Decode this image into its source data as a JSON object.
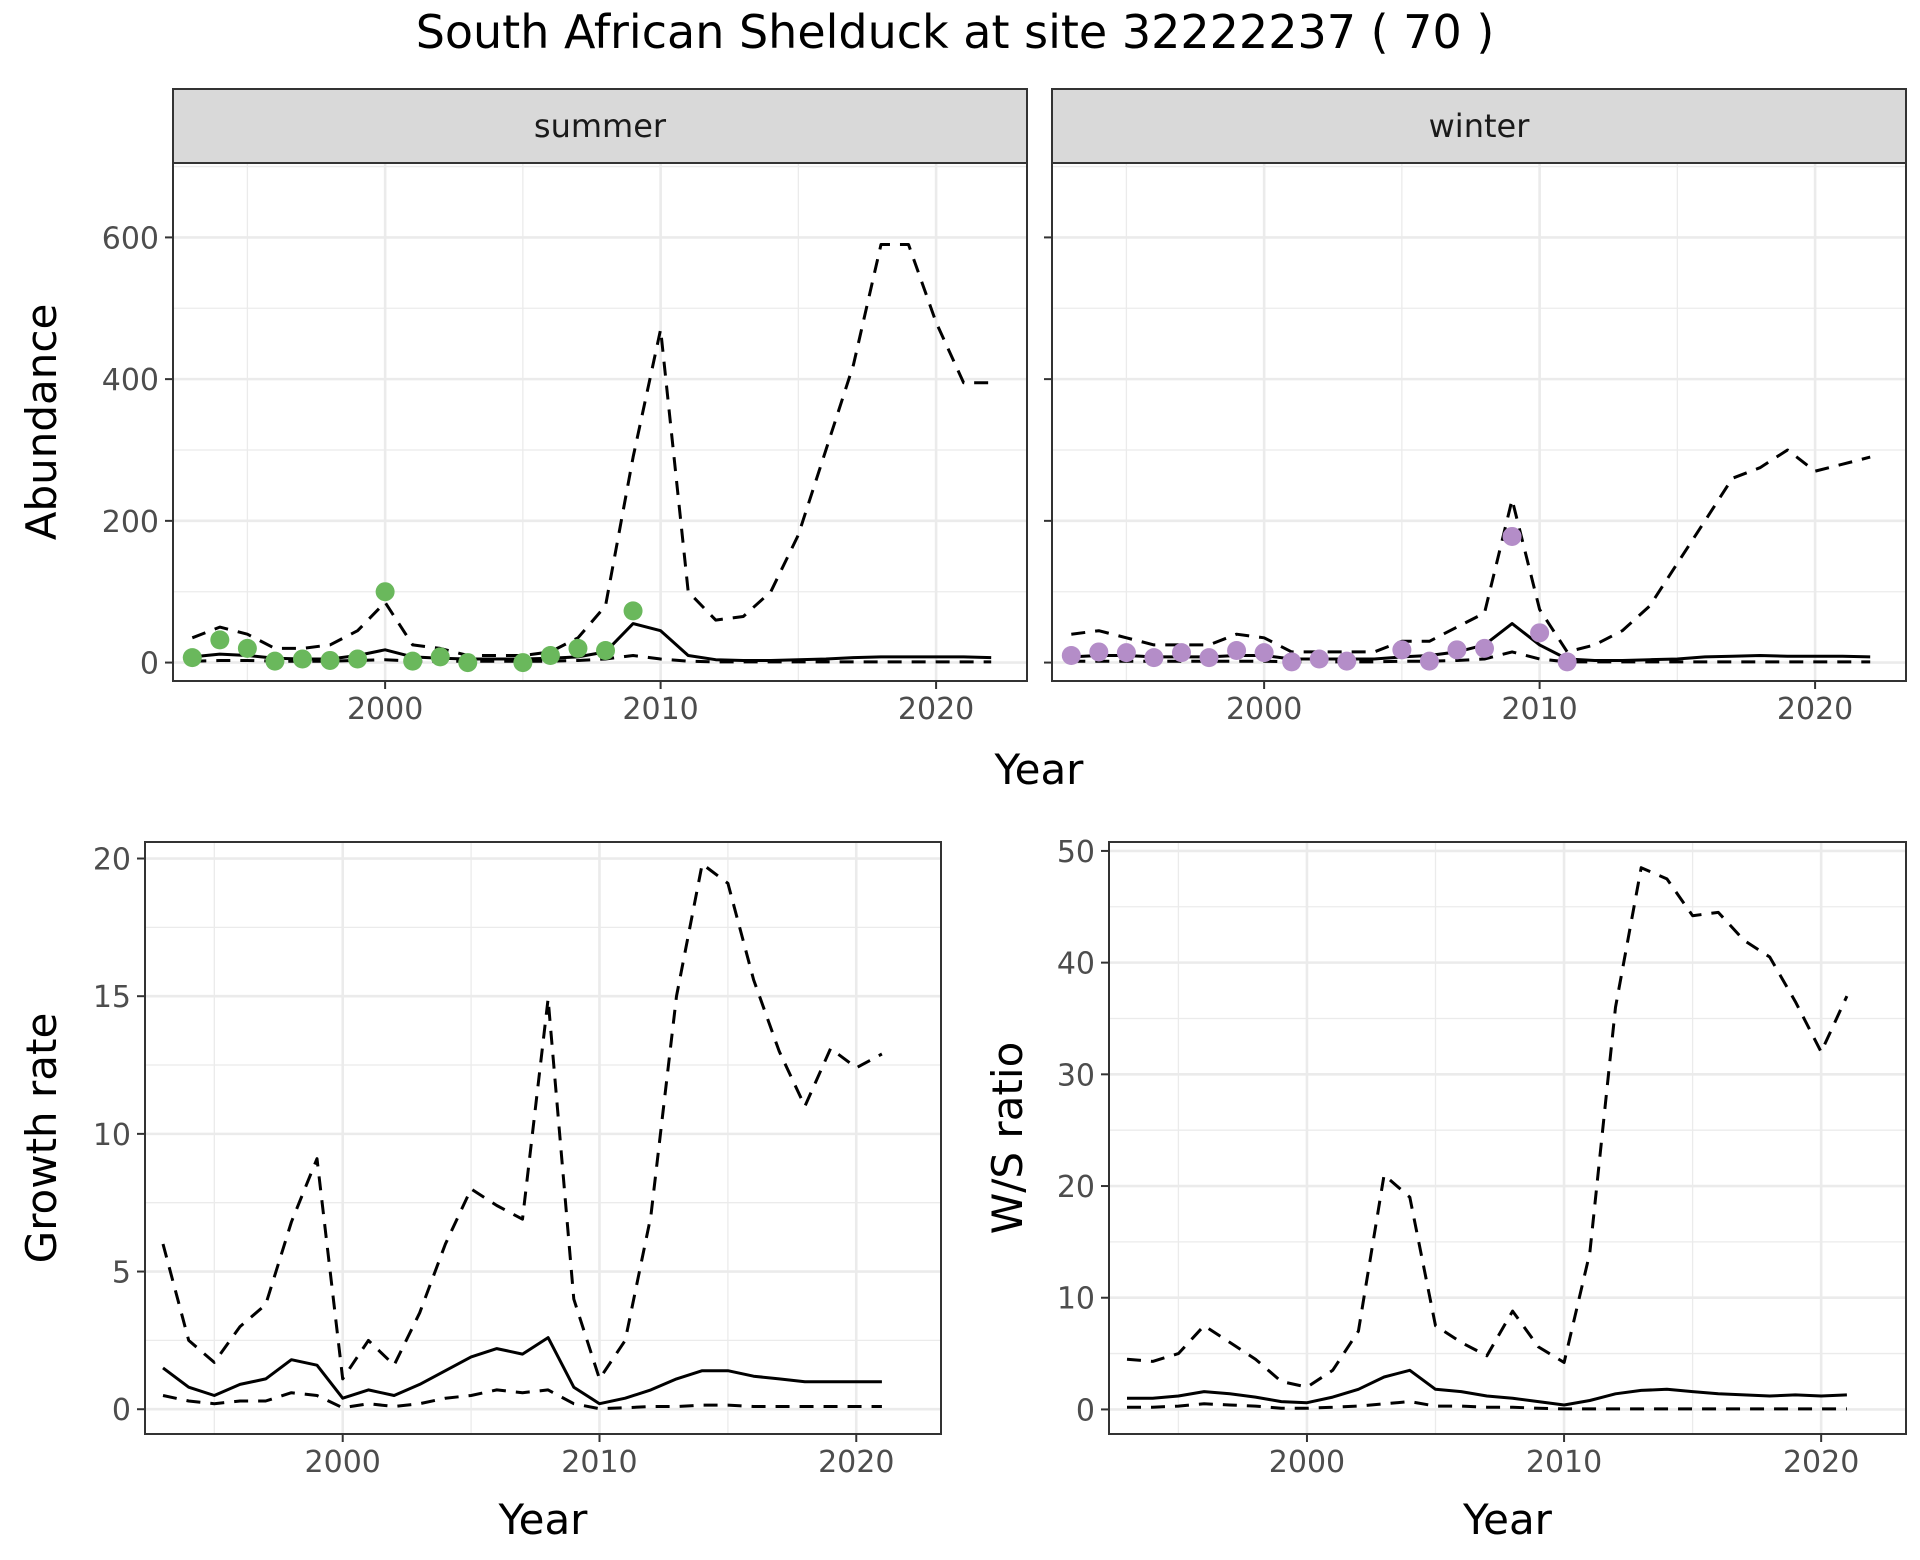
{
  "figure": {
    "title": "South African Shelduck at site 32222237 ( 70 )"
  },
  "colors": {
    "summer_points": "#6ab85c",
    "winter_points": "#b48dc8",
    "lines": "#000000",
    "strip_bg": "#d9d9d9",
    "strip_border": "#333333",
    "grid": "#ebebeb"
  },
  "chart_data": [
    {
      "id": "abundance",
      "type": "line",
      "title": "South African Shelduck at site 32222237 ( 70 )",
      "xlabel": "Year",
      "ylabel": "Abundance",
      "xlim": [
        1992.3,
        2023.3
      ],
      "ylim": [
        -26,
        705
      ],
      "xticks": [
        2000,
        2010,
        2020
      ],
      "xtick_labels": [
        "2000",
        "2010",
        "2020"
      ],
      "yticks": [
        0,
        200,
        400,
        600
      ],
      "ytick_labels": [
        "0",
        "200",
        "400",
        "600"
      ],
      "grid": true,
      "legend": "none",
      "panels": [
        {
          "strip": "summer",
          "point_color": "#6ab85c",
          "series": [
            {
              "style": "solid",
              "x": [
                1993,
                1994,
                1995,
                1996,
                1997,
                1998,
                1999,
                2000,
                2001,
                2002,
                2003,
                2004,
                2005,
                2006,
                2007,
                2008,
                2009,
                2010,
                2011,
                2012,
                2013,
                2014,
                2015,
                2016,
                2017,
                2018,
                2019,
                2020,
                2021,
                2022
              ],
              "values": [
                8,
                12,
                10,
                6,
                5,
                5,
                10,
                18,
                8,
                6,
                5,
                5,
                5,
                6,
                8,
                15,
                55,
                45,
                10,
                4,
                3,
                3,
                4,
                5,
                7,
                8,
                8,
                8,
                8,
                7
              ]
            },
            {
              "style": "dashed",
              "x": [
                1993,
                1994,
                1995,
                1996,
                1997,
                1998,
                1999,
                2000,
                2001,
                2002,
                2003,
                2004,
                2005,
                2006,
                2007,
                2008,
                2009,
                2010,
                2011,
                2012,
                2013,
                2014,
                2015,
                2016,
                2017,
                2018,
                2019,
                2020,
                2021,
                2022
              ],
              "values": [
                35,
                50,
                40,
                20,
                20,
                25,
                45,
                85,
                25,
                20,
                10,
                10,
                10,
                15,
                35,
                80,
                290,
                470,
                100,
                60,
                65,
                100,
                180,
                300,
                420,
                590,
                590,
                480,
                395,
                395
              ]
            },
            {
              "style": "dashed",
              "x": [
                1993,
                1994,
                1995,
                1996,
                1997,
                1998,
                1999,
                2000,
                2001,
                2002,
                2003,
                2004,
                2005,
                2006,
                2007,
                2008,
                2009,
                2010,
                2011,
                2012,
                2013,
                2014,
                2015,
                2016,
                2017,
                2018,
                2019,
                2020,
                2021,
                2022
              ],
              "values": [
                2,
                3,
                3,
                2,
                2,
                2,
                3,
                4,
                2,
                2,
                2,
                2,
                2,
                2,
                3,
                5,
                10,
                5,
                2,
                1,
                1,
                1,
                1,
                1,
                1,
                1,
                1,
                1,
                1,
                1
              ]
            },
            {
              "style": "points",
              "x": [
                1993,
                1994,
                1995,
                1996,
                1997,
                1998,
                1999,
                2000,
                2001,
                2002,
                2003,
                2005,
                2006,
                2007,
                2008,
                2009
              ],
              "values": [
                7,
                32,
                20,
                2,
                5,
                3,
                5,
                100,
                2,
                8,
                0,
                0,
                10,
                20,
                17,
                73
              ]
            }
          ]
        },
        {
          "strip": "winter",
          "point_color": "#b48dc8",
          "series": [
            {
              "style": "solid",
              "x": [
                1993,
                1994,
                1995,
                1996,
                1997,
                1998,
                1999,
                2000,
                2001,
                2002,
                2003,
                2004,
                2005,
                2006,
                2007,
                2008,
                2009,
                2010,
                2011,
                2012,
                2013,
                2014,
                2015,
                2016,
                2017,
                2018,
                2019,
                2020,
                2021,
                2022
              ],
              "values": [
                8,
                10,
                10,
                8,
                8,
                8,
                10,
                10,
                5,
                5,
                5,
                5,
                8,
                10,
                15,
                25,
                55,
                25,
                5,
                3,
                3,
                4,
                5,
                8,
                9,
                10,
                9,
                9,
                9,
                8
              ]
            },
            {
              "style": "dashed",
              "x": [
                1993,
                1994,
                1995,
                1996,
                1997,
                1998,
                1999,
                2000,
                2001,
                2002,
                2003,
                2004,
                2005,
                2006,
                2007,
                2008,
                2009,
                2010,
                2011,
                2012,
                2013,
                2014,
                2015,
                2016,
                2017,
                2018,
                2019,
                2020,
                2021,
                2022
              ],
              "values": [
                40,
                45,
                35,
                25,
                25,
                25,
                40,
                35,
                15,
                15,
                15,
                15,
                30,
                30,
                50,
                70,
                230,
                75,
                15,
                25,
                45,
                80,
                140,
                200,
                260,
                275,
                300,
                270,
                280,
                290
              ]
            },
            {
              "style": "dashed",
              "x": [
                1993,
                1994,
                1995,
                1996,
                1997,
                1998,
                1999,
                2000,
                2001,
                2002,
                2003,
                2004,
                2005,
                2006,
                2007,
                2008,
                2009,
                2010,
                2011,
                2012,
                2013,
                2014,
                2015,
                2016,
                2017,
                2018,
                2019,
                2020,
                2021,
                2022
              ],
              "values": [
                2,
                2,
                2,
                2,
                2,
                2,
                2,
                2,
                1,
                1,
                1,
                1,
                2,
                2,
                3,
                5,
                15,
                5,
                1,
                1,
                1,
                1,
                1,
                1,
                1,
                1,
                1,
                1,
                1,
                1
              ]
            },
            {
              "style": "points",
              "x": [
                1993,
                1994,
                1995,
                1996,
                1997,
                1998,
                1999,
                2000,
                2001,
                2002,
                2003,
                2005,
                2006,
                2007,
                2008,
                2009,
                2010,
                2011
              ],
              "values": [
                10,
                15,
                14,
                7,
                14,
                7,
                17,
                14,
                1,
                5,
                2,
                18,
                2,
                18,
                20,
                178,
                42,
                1
              ]
            }
          ]
        }
      ]
    },
    {
      "id": "growth",
      "type": "line",
      "xlabel": "Year",
      "ylabel": "Growth rate",
      "xlim": [
        1992.3,
        2023.3
      ],
      "ylim": [
        -0.9,
        20.6
      ],
      "xticks": [
        2000,
        2010,
        2020
      ],
      "xtick_labels": [
        "2000",
        "2010",
        "2020"
      ],
      "yticks": [
        0,
        5,
        10,
        15,
        20
      ],
      "ytick_labels": [
        "0",
        "5",
        "10",
        "15",
        "20"
      ],
      "grid": true,
      "legend": "none",
      "series": [
        {
          "style": "solid",
          "x": [
            1993,
            1994,
            1995,
            1996,
            1997,
            1998,
            1999,
            2000,
            2001,
            2002,
            2003,
            2004,
            2005,
            2006,
            2007,
            2008,
            2009,
            2010,
            2011,
            2012,
            2013,
            2014,
            2015,
            2016,
            2017,
            2018,
            2019,
            2020,
            2021
          ],
          "values": [
            1.5,
            0.8,
            0.5,
            0.9,
            1.1,
            1.8,
            1.6,
            0.4,
            0.7,
            0.5,
            0.9,
            1.4,
            1.9,
            2.2,
            2.0,
            2.6,
            0.8,
            0.2,
            0.4,
            0.7,
            1.1,
            1.4,
            1.4,
            1.2,
            1.1,
            1.0,
            1.0,
            1.0,
            1.0
          ]
        },
        {
          "style": "dashed",
          "x": [
            1993,
            1994,
            1995,
            1996,
            1997,
            1998,
            1999,
            2000,
            2001,
            2002,
            2003,
            2004,
            2005,
            2006,
            2007,
            2008,
            2009,
            2010,
            2011,
            2012,
            2013,
            2014,
            2015,
            2016,
            2017,
            2018,
            2019,
            2020,
            2021
          ],
          "values": [
            6.0,
            2.5,
            1.7,
            3.0,
            3.8,
            6.8,
            9.1,
            1.1,
            2.5,
            1.6,
            3.5,
            6.0,
            8.0,
            7.4,
            6.9,
            14.9,
            4.0,
            1.1,
            2.5,
            7.0,
            15.0,
            19.8,
            19.1,
            15.6,
            13.0,
            11.0,
            13.1,
            12.4,
            12.9
          ]
        },
        {
          "style": "dashed",
          "x": [
            1993,
            1994,
            1995,
            1996,
            1997,
            1998,
            1999,
            2000,
            2001,
            2002,
            2003,
            2004,
            2005,
            2006,
            2007,
            2008,
            2009,
            2010,
            2011,
            2012,
            2013,
            2014,
            2015,
            2016,
            2017,
            2018,
            2019,
            2020,
            2021
          ],
          "values": [
            0.5,
            0.3,
            0.2,
            0.3,
            0.3,
            0.6,
            0.5,
            0.05,
            0.2,
            0.1,
            0.2,
            0.4,
            0.5,
            0.7,
            0.6,
            0.7,
            0.2,
            0.02,
            0.05,
            0.1,
            0.1,
            0.15,
            0.15,
            0.1,
            0.1,
            0.1,
            0.1,
            0.1,
            0.1
          ]
        }
      ]
    },
    {
      "id": "ratio",
      "type": "line",
      "xlabel": "Year",
      "ylabel": "W/S ratio",
      "xlim": [
        1992.3,
        2023.3
      ],
      "ylim": [
        -2.2,
        50.8
      ],
      "xticks": [
        2000,
        2010,
        2020
      ],
      "xtick_labels": [
        "2000",
        "2010",
        "2020"
      ],
      "yticks": [
        0,
        10,
        20,
        30,
        40,
        50
      ],
      "ytick_labels": [
        "0",
        "10",
        "20",
        "30",
        "40",
        "50"
      ],
      "grid": true,
      "legend": "none",
      "series": [
        {
          "style": "solid",
          "x": [
            1993,
            1994,
            1995,
            1996,
            1997,
            1998,
            1999,
            2000,
            2001,
            2002,
            2003,
            2004,
            2005,
            2006,
            2007,
            2008,
            2009,
            2010,
            2011,
            2012,
            2013,
            2014,
            2015,
            2016,
            2017,
            2018,
            2019,
            2020,
            2021
          ],
          "values": [
            1.0,
            1.0,
            1.2,
            1.6,
            1.4,
            1.1,
            0.7,
            0.6,
            1.1,
            1.8,
            2.9,
            3.5,
            1.8,
            1.6,
            1.2,
            1.0,
            0.7,
            0.4,
            0.8,
            1.4,
            1.7,
            1.8,
            1.6,
            1.4,
            1.3,
            1.2,
            1.3,
            1.2,
            1.3
          ]
        },
        {
          "style": "dashed",
          "x": [
            1993,
            1994,
            1995,
            1996,
            1997,
            1998,
            1999,
            2000,
            2001,
            2002,
            2003,
            2004,
            2005,
            2006,
            2007,
            2008,
            2009,
            2010,
            2011,
            2012,
            2013,
            2014,
            2015,
            2016,
            2017,
            2018,
            2019,
            2020,
            2021
          ],
          "values": [
            4.5,
            4.3,
            5.0,
            7.5,
            6.0,
            4.5,
            2.5,
            2.0,
            3.5,
            7.0,
            21.0,
            19.0,
            7.5,
            6.0,
            4.8,
            8.8,
            5.6,
            4.2,
            14.0,
            36.0,
            48.5,
            47.5,
            44.2,
            44.5,
            42.0,
            40.5,
            36.5,
            32.0,
            37.0
          ]
        },
        {
          "style": "dashed",
          "x": [
            1993,
            1994,
            1995,
            1996,
            1997,
            1998,
            1999,
            2000,
            2001,
            2002,
            2003,
            2004,
            2005,
            2006,
            2007,
            2008,
            2009,
            2010,
            2011,
            2012,
            2013,
            2014,
            2015,
            2016,
            2017,
            2018,
            2019,
            2020,
            2021
          ],
          "values": [
            0.2,
            0.2,
            0.3,
            0.5,
            0.4,
            0.3,
            0.1,
            0.1,
            0.2,
            0.3,
            0.5,
            0.7,
            0.3,
            0.3,
            0.2,
            0.2,
            0.1,
            0.05,
            0.05,
            0.05,
            0.05,
            0.05,
            0.05,
            0.05,
            0.05,
            0.05,
            0.05,
            0.05,
            0.05
          ]
        }
      ]
    }
  ]
}
